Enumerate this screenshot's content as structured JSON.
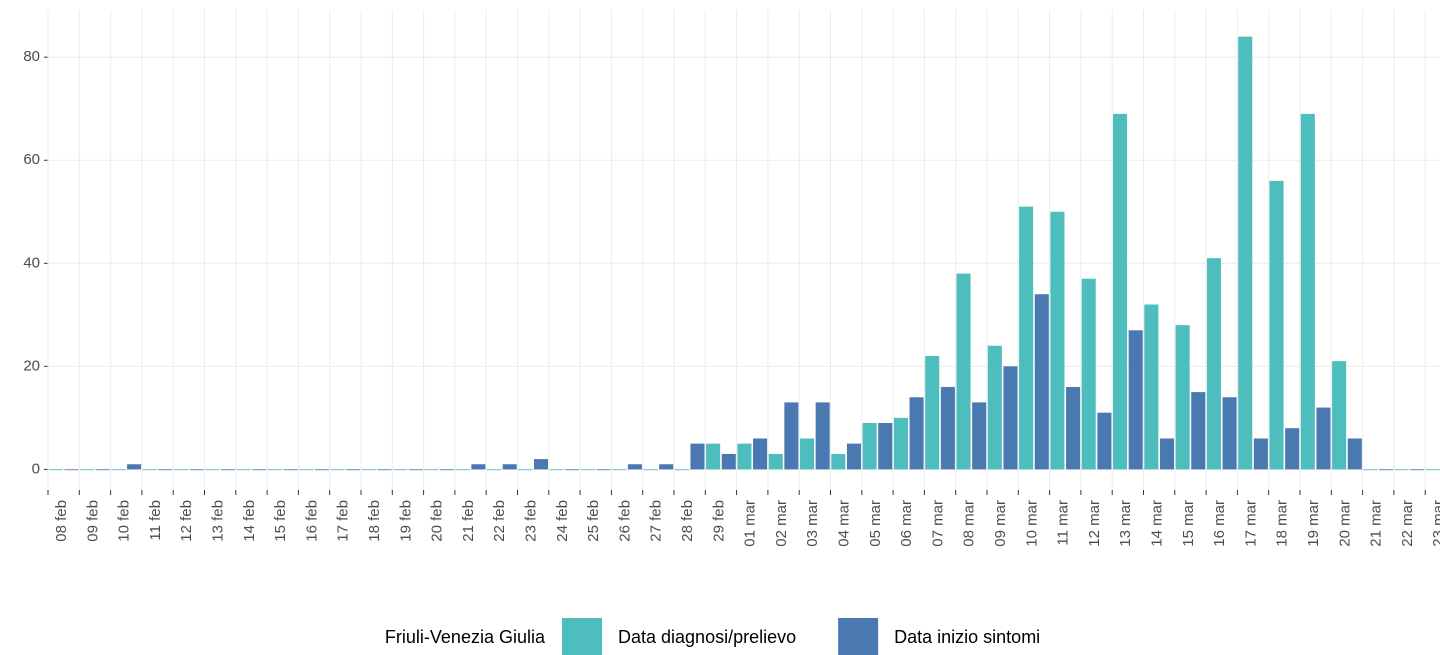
{
  "chart_data": {
    "type": "bar",
    "categories": [
      "08 feb",
      "09 feb",
      "10 feb",
      "11 feb",
      "12 feb",
      "13 feb",
      "14 feb",
      "15 feb",
      "16 feb",
      "17 feb",
      "18 feb",
      "19 feb",
      "20 feb",
      "21 feb",
      "22 feb",
      "23 feb",
      "24 feb",
      "25 feb",
      "26 feb",
      "27 feb",
      "28 feb",
      "29 feb",
      "01 mar",
      "02 mar",
      "03 mar",
      "04 mar",
      "05 mar",
      "06 mar",
      "07 mar",
      "08 mar",
      "09 mar",
      "10 mar",
      "11 mar",
      "12 mar",
      "13 mar",
      "14 mar",
      "15 mar",
      "16 mar",
      "17 mar",
      "18 mar",
      "19 mar",
      "20 mar",
      "21 mar",
      "22 mar",
      "23 mar"
    ],
    "legend_title": "Friuli-Venezia Giulia",
    "series": [
      {
        "name": "Data diagnosi/prelievo",
        "color": "#4dbdbd",
        "values": [
          0,
          0,
          0,
          0,
          0,
          0,
          0,
          0,
          0,
          0,
          0,
          0,
          0,
          0,
          0,
          0,
          0,
          0,
          0,
          0,
          0,
          5,
          5,
          3,
          6,
          3,
          9,
          10,
          22,
          38,
          24,
          51,
          50,
          37,
          69,
          32,
          28,
          41,
          84,
          56,
          69,
          21,
          0,
          0,
          0
        ]
      },
      {
        "name": "Data inizio sintomi",
        "color": "#4a78b0",
        "values": [
          0,
          0,
          1,
          0,
          0,
          0,
          0,
          0,
          0,
          0,
          0,
          0,
          0,
          1,
          1,
          2,
          0,
          0,
          1,
          1,
          5,
          3,
          6,
          13,
          13,
          5,
          9,
          14,
          16,
          13,
          20,
          34,
          16,
          11,
          27,
          6,
          15,
          14,
          6,
          8,
          12,
          6,
          0,
          0,
          0
        ]
      }
    ],
    "ylim": [
      -4,
      88
    ],
    "yticks": [
      0,
      20,
      40,
      60,
      80
    ],
    "grid": true,
    "legend": "bottom"
  }
}
